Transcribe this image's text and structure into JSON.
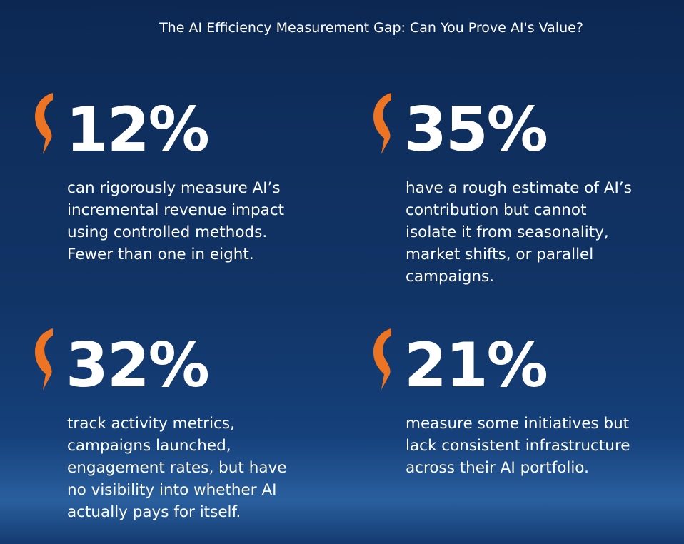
{
  "title": "The AI Efficiency Measurement Gap: Can You Prove AI's Value?",
  "stats": [
    {
      "figure": "12%",
      "text": "can rigorously measure AI’s incremental revenue impact using controlled methods. Fewer than one in eight."
    },
    {
      "figure": "35%",
      "text": "have a rough estimate of AI’s contribution but cannot isolate it from seasonality, market shifts, or parallel campaigns."
    },
    {
      "figure": "32%",
      "text": "track activity metrics, campaigns launched, engagement rates, but have no visibility into whether AI actually pays for itself."
    },
    {
      "figure": "21%",
      "text": "measure some initiatives but lack consistent infrastructure across their AI portfolio."
    }
  ]
}
